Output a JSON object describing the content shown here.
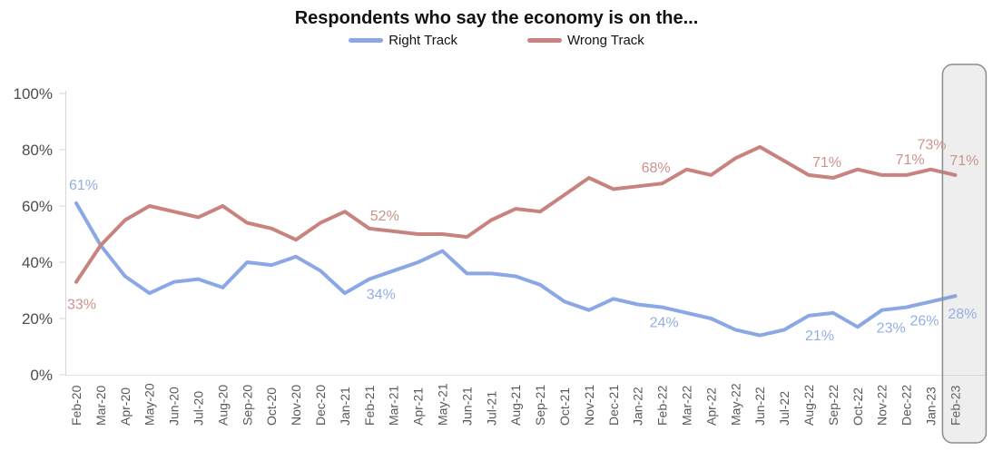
{
  "chart": {
    "title": "Respondents who say the economy is on the...",
    "legend": [
      {
        "label": "Right Track",
        "color": "#8BA7E6"
      },
      {
        "label": "Wrong Track",
        "color": "#C9837F"
      }
    ]
  },
  "chart_data": {
    "type": "line",
    "title": "Respondents who say the economy is on the...",
    "xlabel": "",
    "ylabel": "",
    "ylim": [
      0,
      100
    ],
    "grid": false,
    "legend_position": "top-center",
    "y_ticks": [
      {
        "v": 0,
        "label": "0%"
      },
      {
        "v": 20,
        "label": "20%"
      },
      {
        "v": 40,
        "label": "40%"
      },
      {
        "v": 60,
        "label": "60%"
      },
      {
        "v": 80,
        "label": "80%"
      },
      {
        "v": 100,
        "label": "100%"
      }
    ],
    "categories": [
      "Feb-20",
      "Mar-20",
      "Apr-20",
      "May-20",
      "Jun-20",
      "Jul-20",
      "Aug-20",
      "Sep-20",
      "Oct-20",
      "Nov-20",
      "Dec-20",
      "Jan-21",
      "Feb-21",
      "Mar-21",
      "Apr-21",
      "May-21",
      "Jun-21",
      "Jul-21",
      "Aug-21",
      "Sep-21",
      "Oct-21",
      "Nov-21",
      "Dec-21",
      "Jan-22",
      "Feb-22",
      "Mar-22",
      "Apr-22",
      "May-22",
      "Jun-22",
      "Jul-22",
      "Aug-22",
      "Sep-22",
      "Oct-22",
      "Nov-22",
      "Dec-22",
      "Jan-23",
      "Feb-23"
    ],
    "series": [
      {
        "name": "Right Track",
        "color": "#8BA7E6",
        "label_color": "#95AEE5",
        "values": [
          61,
          46,
          35,
          29,
          33,
          34,
          31,
          40,
          39,
          42,
          37,
          29,
          34,
          37,
          40,
          44,
          36,
          36,
          35,
          32,
          26,
          23,
          27,
          25,
          24,
          22,
          20,
          16,
          14,
          16,
          21,
          22,
          17,
          23,
          24,
          26,
          28
        ]
      },
      {
        "name": "Wrong Track",
        "color": "#C9837F",
        "label_color": "#CD928D",
        "values": [
          33,
          46,
          55,
          60,
          58,
          56,
          60,
          54,
          52,
          48,
          54,
          58,
          52,
          51,
          50,
          50,
          49,
          55,
          59,
          58,
          64,
          70,
          66,
          67,
          68,
          73,
          71,
          77,
          81,
          76,
          71,
          70,
          73,
          71,
          71,
          73,
          71
        ]
      }
    ],
    "annotations": [
      {
        "series": "Right Track",
        "category": "Feb-20",
        "label": "61%"
      },
      {
        "series": "Wrong Track",
        "category": "Feb-20",
        "label": "33%"
      },
      {
        "series": "Wrong Track",
        "category": "Feb-21",
        "label": "52%"
      },
      {
        "series": "Right Track",
        "category": "Feb-21",
        "label": "34%"
      },
      {
        "series": "Wrong Track",
        "category": "Feb-22",
        "label": "68%"
      },
      {
        "series": "Right Track",
        "category": "Feb-22",
        "label": "24%"
      },
      {
        "series": "Wrong Track",
        "category": "Aug-22",
        "label": "71%"
      },
      {
        "series": "Right Track",
        "category": "Aug-22",
        "label": "21%"
      },
      {
        "series": "Right Track",
        "category": "Nov-22",
        "label": "23%"
      },
      {
        "series": "Wrong Track",
        "category": "Dec-22",
        "label": "71%"
      },
      {
        "series": "Right Track",
        "category": "Jan-23",
        "label": "26%"
      },
      {
        "series": "Wrong Track",
        "category": "Jan-23",
        "label": "73%"
      },
      {
        "series": "Right Track",
        "category": "Feb-23",
        "label": "28%"
      },
      {
        "series": "Wrong Track",
        "category": "Feb-23",
        "label": "71%"
      }
    ],
    "highlight": {
      "category": "Feb-23",
      "style": "rounded-box"
    }
  }
}
